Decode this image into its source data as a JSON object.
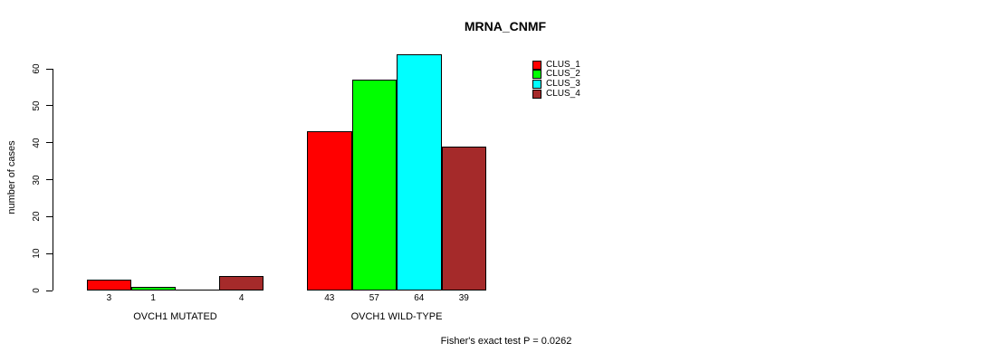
{
  "title": "MRNA_CNMF",
  "footer": "Fisher's exact test P = 0.0262",
  "y_axis": {
    "label": "number of cases",
    "ticks": [
      "0",
      "10",
      "20",
      "30",
      "40",
      "50",
      "60"
    ]
  },
  "legend": {
    "items": [
      {
        "label": "CLUS_1",
        "color": "#FF0000"
      },
      {
        "label": "CLUS_2",
        "color": "#00FF00"
      },
      {
        "label": "CLUS_3",
        "color": "#00FFFF"
      },
      {
        "label": "CLUS_4",
        "color": "#A52A2A"
      }
    ]
  },
  "chart_data": {
    "type": "bar",
    "title": "MRNA_CNMF",
    "xlabel": "",
    "ylabel": "number of cases",
    "ylim": [
      0,
      60
    ],
    "grid": false,
    "legend_position": "top-right",
    "categories": [
      "OVCH1 MUTATED",
      "OVCH1 WILD-TYPE"
    ],
    "series": [
      {
        "name": "CLUS_1",
        "color": "#FF0000",
        "values": [
          3,
          43
        ]
      },
      {
        "name": "CLUS_2",
        "color": "#00FF00",
        "values": [
          1,
          57
        ]
      },
      {
        "name": "CLUS_3",
        "color": "#00FFFF",
        "values": [
          0,
          64
        ]
      },
      {
        "name": "CLUS_4",
        "color": "#A52A2A",
        "values": [
          4,
          39
        ]
      }
    ],
    "bar_labels": [
      [
        "3",
        "1",
        "",
        "4"
      ],
      [
        "43",
        "57",
        "64",
        "39"
      ]
    ],
    "annotation": "Fisher's exact test P = 0.0262"
  }
}
